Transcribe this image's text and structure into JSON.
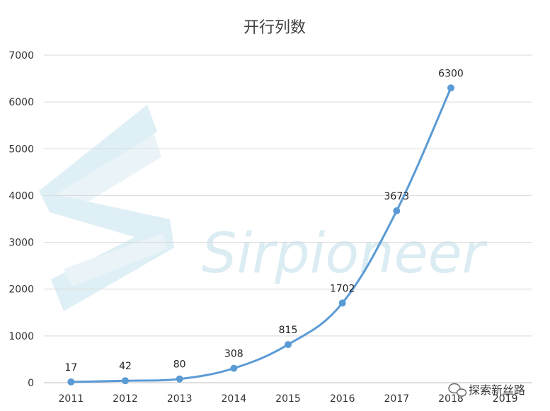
{
  "chart_data": {
    "type": "line",
    "title": "开行列数",
    "xlabel": "",
    "ylabel": "",
    "x": [
      "2011",
      "2012",
      "2013",
      "2014",
      "2015",
      "2016",
      "2017",
      "2018",
      "2019"
    ],
    "series": [
      {
        "values": [
          17,
          42,
          80,
          308,
          815,
          1702,
          3673,
          6300,
          null
        ]
      }
    ],
    "data_labels": [
      "17",
      "42",
      "80",
      "308",
      "815",
      "1702",
      "3673",
      "6300"
    ],
    "yticks": [
      "0",
      "1000",
      "2000",
      "3000",
      "4000",
      "5000",
      "6000",
      "7000"
    ],
    "ylim": [
      0,
      7000
    ],
    "grid": true,
    "legend": "none",
    "line_color": "#5b9bd5"
  },
  "watermark": {
    "text": "Sirpioneer",
    "color": "#cfe6f0"
  },
  "brand": {
    "text": "探索新丝路",
    "icon": "wechat-icon"
  }
}
